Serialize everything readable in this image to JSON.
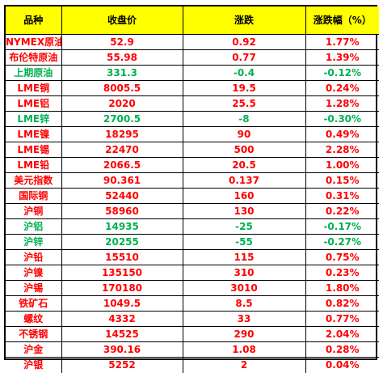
{
  "colors": {
    "header_bg": "#ffff00",
    "up": "#ff0000",
    "down": "#00b050",
    "border": "#000000"
  },
  "header": {
    "name": "品种",
    "close": "收盘价",
    "change": "涨跌",
    "change_pct": "涨跌幅（%）"
  },
  "rows": [
    {
      "name": "NYMEX原油",
      "close": "52.9",
      "change": "0.92",
      "change_pct": "1.77%",
      "trend": "up"
    },
    {
      "name": "布伦特原油",
      "close": "55.98",
      "change": "0.77",
      "change_pct": "1.39%",
      "trend": "up"
    },
    {
      "name": "上期原油",
      "close": "331.3",
      "change": "-0.4",
      "change_pct": "-0.12%",
      "trend": "down"
    },
    {
      "name": "LME铜",
      "close": "8005.5",
      "change": "19.5",
      "change_pct": "0.24%",
      "trend": "up"
    },
    {
      "name": "LME铝",
      "close": "2020",
      "change": "25.5",
      "change_pct": "1.28%",
      "trend": "up"
    },
    {
      "name": "LME锌",
      "close": "2700.5",
      "change": "-8",
      "change_pct": "-0.30%",
      "trend": "down"
    },
    {
      "name": "LME镍",
      "close": "18295",
      "change": "90",
      "change_pct": "0.49%",
      "trend": "up"
    },
    {
      "name": "LME锡",
      "close": "22470",
      "change": "500",
      "change_pct": "2.28%",
      "trend": "up"
    },
    {
      "name": "LME铅",
      "close": "2066.5",
      "change": "20.5",
      "change_pct": "1.00%",
      "trend": "up"
    },
    {
      "name": "美元指数",
      "close": "90.361",
      "change": "0.137",
      "change_pct": "0.15%",
      "trend": "up"
    },
    {
      "name": "国际铜",
      "close": "52440",
      "change": "160",
      "change_pct": "0.31%",
      "trend": "up"
    },
    {
      "name": "沪铜",
      "close": "58960",
      "change": "130",
      "change_pct": "0.22%",
      "trend": "up"
    },
    {
      "name": "沪铝",
      "close": "14935",
      "change": "-25",
      "change_pct": "-0.17%",
      "trend": "down"
    },
    {
      "name": "沪锌",
      "close": "20255",
      "change": "-55",
      "change_pct": "-0.27%",
      "trend": "down"
    },
    {
      "name": "沪铅",
      "close": "15510",
      "change": "115",
      "change_pct": "0.75%",
      "trend": "up"
    },
    {
      "name": "沪镍",
      "close": "135150",
      "change": "310",
      "change_pct": "0.23%",
      "trend": "up"
    },
    {
      "name": "沪锡",
      "close": "170180",
      "change": "3010",
      "change_pct": "1.80%",
      "trend": "up"
    },
    {
      "name": "铁矿石",
      "close": "1049.5",
      "change": "8.5",
      "change_pct": "0.82%",
      "trend": "up"
    },
    {
      "name": "螺纹",
      "close": "4332",
      "change": "33",
      "change_pct": "0.77%",
      "trend": "up"
    },
    {
      "name": "不锈钢",
      "close": "14525",
      "change": "290",
      "change_pct": "2.04%",
      "trend": "up"
    },
    {
      "name": "沪金",
      "close": "390.16",
      "change": "1.08",
      "change_pct": "0.28%",
      "trend": "up"
    },
    {
      "name": "沪银",
      "close": "5252",
      "change": "2",
      "change_pct": "0.04%",
      "trend": "up"
    }
  ]
}
